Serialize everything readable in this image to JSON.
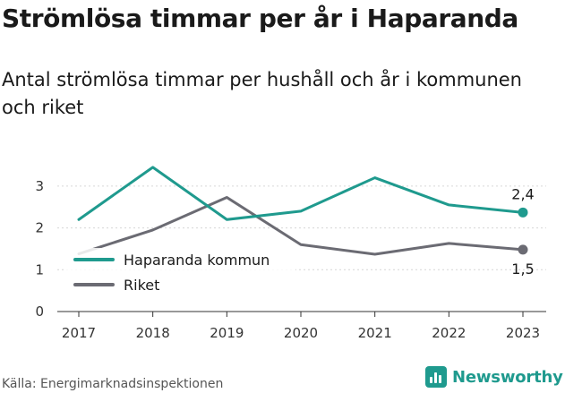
{
  "title": "Strömlösa timmar per år i Haparanda",
  "subtitle": "Antal strömlösa timmar per hushåll och år i kommunen och riket",
  "source": "Källa: Energimarknadsinspektionen",
  "brand": "Newsworthy",
  "chart_data": {
    "type": "line",
    "title": "Strömlösa timmar per år i Haparanda",
    "subtitle": "Antal strömlösa timmar per hushåll och år i kommunen och riket",
    "x": [
      "2017",
      "2018",
      "2019",
      "2020",
      "2021",
      "2022",
      "2023"
    ],
    "xlabel": "",
    "ylabel": "",
    "yticks": [
      "0",
      "1",
      "2",
      "3"
    ],
    "ylim": [
      0,
      3.4
    ],
    "grid": true,
    "legend_position": "inside-left",
    "series": [
      {
        "name": "Haparanda kommun",
        "color": "#1f9a8e",
        "values": [
          2.2,
          3.45,
          2.2,
          2.4,
          3.2,
          2.55,
          2.37
        ],
        "end_label": "2,4"
      },
      {
        "name": "Riket",
        "color": "#6b6b73",
        "values": [
          1.38,
          1.95,
          2.73,
          1.6,
          1.37,
          1.63,
          1.48
        ],
        "end_label": "1,5"
      }
    ]
  }
}
